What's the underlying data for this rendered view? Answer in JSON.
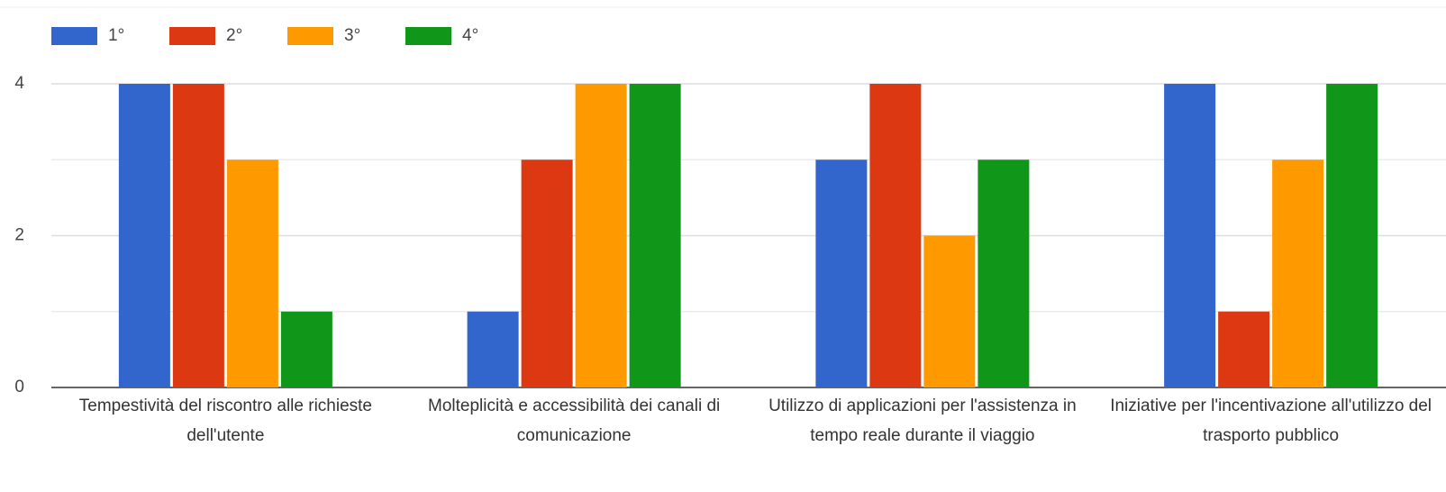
{
  "chart_data": {
    "type": "bar",
    "categories": [
      "Tempestività del riscontro alle richieste dell'utente",
      "Molteplicità e accessibilità dei canali di comunicazione",
      "Utilizzo di applicazioni per l'assistenza in tempo reale durante il viaggio",
      "Iniziative per l'incentivazione all'utilizzo del trasporto pubblico"
    ],
    "series": [
      {
        "name": "1°",
        "color": "#3366cc",
        "values": [
          4,
          1,
          3,
          4
        ]
      },
      {
        "name": "2°",
        "color": "#dc3912",
        "values": [
          4,
          3,
          4,
          1
        ]
      },
      {
        "name": "3°",
        "color": "#ff9900",
        "values": [
          3,
          4,
          2,
          3
        ]
      },
      {
        "name": "4°",
        "color": "#109618",
        "values": [
          1,
          4,
          3,
          4
        ]
      }
    ],
    "ylim": [
      0,
      4
    ],
    "yticks": [
      0,
      2,
      4
    ],
    "minor_yticks": [
      1,
      3
    ],
    "grid": true,
    "legend": "top"
  }
}
